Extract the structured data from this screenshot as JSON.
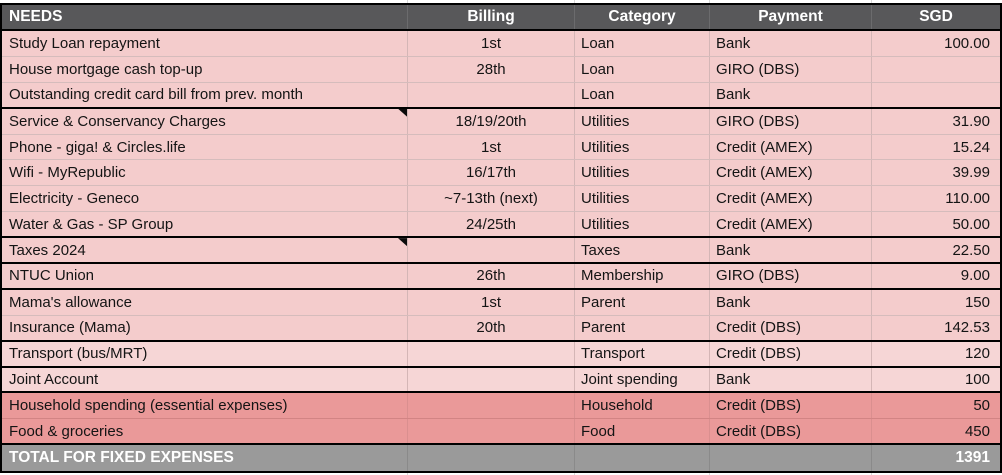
{
  "colors": {
    "header_bg": "#58585a",
    "header_text": "#ffffff",
    "row_pink": "#f4cccc",
    "row_pink_light": "#f6d6d6",
    "row_salmon": "#ea9999",
    "total_bg": "#9a9a9a",
    "total_text": "#ffffff",
    "group_border": "#000000"
  },
  "table": {
    "headers": [
      "NEEDS",
      "Billing",
      "Category",
      "Payment",
      "SGD"
    ],
    "rows": [
      {
        "item": "Study Loan repayment",
        "billing": "1st",
        "category": "Loan",
        "payment": "Bank",
        "sgd": "100.00",
        "tone": "pink",
        "thick_bottom": false,
        "comment": false
      },
      {
        "item": "House mortgage cash top-up",
        "billing": "28th",
        "category": "Loan",
        "payment": "GIRO (DBS)",
        "sgd": "",
        "tone": "pink",
        "thick_bottom": false,
        "comment": false
      },
      {
        "item": "Outstanding credit card bill from prev. month",
        "billing": "",
        "category": "Loan",
        "payment": "Bank",
        "sgd": "",
        "tone": "pink",
        "thick_bottom": true,
        "comment": false
      },
      {
        "item": "Service & Conservancy Charges",
        "billing": "18/19/20th",
        "category": "Utilities",
        "payment": "GIRO (DBS)",
        "sgd": "31.90",
        "tone": "pink",
        "thick_bottom": false,
        "comment": true
      },
      {
        "item": "Phone - giga! & Circles.life",
        "billing": "1st",
        "category": "Utilities",
        "payment": "Credit (AMEX)",
        "sgd": "15.24",
        "tone": "pink",
        "thick_bottom": false,
        "comment": false
      },
      {
        "item": "Wifi - MyRepublic",
        "billing": "16/17th",
        "category": "Utilities",
        "payment": "Credit (AMEX)",
        "sgd": "39.99",
        "tone": "pink",
        "thick_bottom": false,
        "comment": false
      },
      {
        "item": "Electricity - Geneco",
        "billing": "~7-13th (next)",
        "category": "Utilities",
        "payment": "Credit (AMEX)",
        "sgd": "110.00",
        "tone": "pink",
        "thick_bottom": false,
        "comment": false
      },
      {
        "item": "Water & Gas - SP Group",
        "billing": "24/25th",
        "category": "Utilities",
        "payment": "Credit (AMEX)",
        "sgd": "50.00",
        "tone": "pink",
        "thick_bottom": true,
        "comment": false
      },
      {
        "item": "Taxes 2024",
        "billing": "",
        "category": "Taxes",
        "payment": "Bank",
        "sgd": "22.50",
        "tone": "pink",
        "thick_bottom": true,
        "comment": true
      },
      {
        "item": "NTUC Union",
        "billing": "26th",
        "category": "Membership",
        "payment": "GIRO (DBS)",
        "sgd": "9.00",
        "tone": "pink",
        "thick_bottom": true,
        "comment": false
      },
      {
        "item": "Mama's allowance",
        "billing": "1st",
        "category": "Parent",
        "payment": "Bank",
        "sgd": "150",
        "tone": "pink",
        "thick_bottom": false,
        "comment": false
      },
      {
        "item": "Insurance (Mama)",
        "billing": "20th",
        "category": "Parent",
        "payment": "Credit (DBS)",
        "sgd": "142.53",
        "tone": "pink",
        "thick_bottom": true,
        "comment": false
      },
      {
        "item": "Transport (bus/MRT)",
        "billing": "",
        "category": "Transport",
        "payment": "Credit (DBS)",
        "sgd": "120",
        "tone": "pink_light",
        "thick_bottom": true,
        "comment": false
      },
      {
        "item": "Joint Account",
        "billing": "",
        "category": "Joint spending",
        "payment": "Bank",
        "sgd": "100",
        "tone": "pink_light",
        "thick_bottom": true,
        "comment": false
      },
      {
        "item": "Household spending (essential expenses)",
        "billing": "",
        "category": "Household",
        "payment": "Credit (DBS)",
        "sgd": "50",
        "tone": "salmon",
        "thick_bottom": false,
        "comment": false
      },
      {
        "item": "Food & groceries",
        "billing": "",
        "category": "Food",
        "payment": "Credit (DBS)",
        "sgd": "450",
        "tone": "salmon",
        "thick_bottom": true,
        "comment": false
      }
    ],
    "total": {
      "label": "TOTAL FOR FIXED EXPENSES",
      "billing": "",
      "category": "",
      "payment": "",
      "sgd": "1391"
    }
  }
}
